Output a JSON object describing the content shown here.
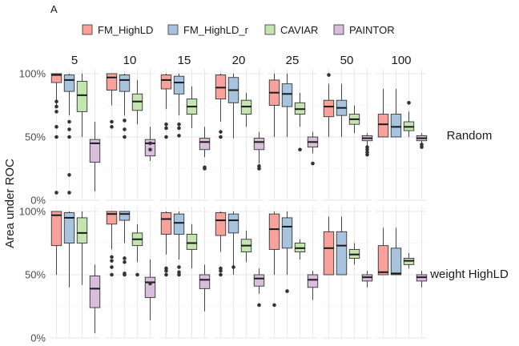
{
  "chart_data": {
    "type": "boxplot",
    "panel_label": "A",
    "ylabel": "Area under ROC",
    "ylim": [
      0,
      1
    ],
    "yticks": [
      0,
      0.5,
      1
    ],
    "ytick_labels": [
      "0%",
      "50%",
      "100%"
    ],
    "legend": {
      "position": "top",
      "entries": [
        {
          "name": "FM_HighLD",
          "color": "#F8A29B"
        },
        {
          "name": "FM_HighLD_r",
          "color": "#A7C3DE"
        },
        {
          "name": "CAVIAR",
          "color": "#C4E4B1"
        },
        {
          "name": "PAINTOR",
          "color": "#D8BEDB"
        }
      ]
    },
    "columns": [
      "5",
      "10",
      "15",
      "20",
      "25",
      "50",
      "100"
    ],
    "rows": [
      "Random",
      "weight HighLD"
    ],
    "grid": true,
    "panels": [
      {
        "row": 0,
        "col": 0,
        "boxes": [
          {
            "series": 0,
            "min": 0.73,
            "q1": 0.93,
            "median": 0.99,
            "q3": 1.0,
            "max": 1.0,
            "outliers": [
              0.78,
              0.74,
              0.7,
              0.58,
              0.5,
              0.06
            ]
          },
          {
            "series": 1,
            "min": 0.67,
            "q1": 0.86,
            "median": 0.95,
            "q3": 0.99,
            "max": 1.0,
            "outliers": [
              0.62,
              0.56,
              0.5,
              0.2,
              0.06
            ]
          },
          {
            "series": 2,
            "min": 0.5,
            "q1": 0.7,
            "median": 0.83,
            "q3": 0.94,
            "max": 1.0,
            "outliers": []
          },
          {
            "series": 3,
            "min": 0.07,
            "q1": 0.3,
            "median": 0.45,
            "q3": 0.48,
            "max": 0.62,
            "outliers": []
          }
        ]
      },
      {
        "row": 0,
        "col": 1,
        "boxes": [
          {
            "series": 0,
            "min": 0.75,
            "q1": 0.87,
            "median": 0.97,
            "q3": 1.0,
            "max": 1.0,
            "outliers": [
              0.62,
              0.58
            ]
          },
          {
            "series": 1,
            "min": 0.67,
            "q1": 0.86,
            "median": 0.95,
            "q3": 0.99,
            "max": 1.0,
            "outliers": [
              0.63,
              0.56,
              0.5
            ]
          },
          {
            "series": 2,
            "min": 0.6,
            "q1": 0.71,
            "median": 0.78,
            "q3": 0.84,
            "max": 0.95,
            "outliers": []
          },
          {
            "series": 3,
            "min": 0.31,
            "q1": 0.35,
            "median": 0.45,
            "q3": 0.48,
            "max": 0.58,
            "outliers": [
              0.45,
              0.4
            ]
          }
        ]
      },
      {
        "row": 0,
        "col": 2,
        "boxes": [
          {
            "series": 0,
            "min": 0.72,
            "q1": 0.88,
            "median": 0.95,
            "q3": 0.99,
            "max": 1.0,
            "outliers": [
              0.6,
              0.57,
              0.5
            ]
          },
          {
            "series": 1,
            "min": 0.67,
            "q1": 0.84,
            "median": 0.93,
            "q3": 0.98,
            "max": 1.0,
            "outliers": [
              0.6,
              0.57,
              0.51
            ]
          },
          {
            "series": 2,
            "min": 0.57,
            "q1": 0.68,
            "median": 0.74,
            "q3": 0.8,
            "max": 0.9,
            "outliers": []
          },
          {
            "series": 3,
            "min": 0.34,
            "q1": 0.4,
            "median": 0.46,
            "q3": 0.49,
            "max": 0.58,
            "outliers": [
              0.26,
              0.25
            ]
          }
        ]
      },
      {
        "row": 0,
        "col": 3,
        "boxes": [
          {
            "series": 0,
            "min": 0.62,
            "q1": 0.8,
            "median": 0.89,
            "q3": 0.99,
            "max": 1.0,
            "outliers": [
              0.54,
              0.5
            ]
          },
          {
            "series": 1,
            "min": 0.49,
            "q1": 0.77,
            "median": 0.87,
            "q3": 0.97,
            "max": 1.0,
            "outliers": []
          },
          {
            "series": 2,
            "min": 0.58,
            "q1": 0.68,
            "median": 0.74,
            "q3": 0.79,
            "max": 0.85,
            "outliers": []
          },
          {
            "series": 3,
            "min": 0.29,
            "q1": 0.4,
            "median": 0.46,
            "q3": 0.49,
            "max": 0.54,
            "outliers": [
              0.27,
              0.25
            ]
          }
        ]
      },
      {
        "row": 0,
        "col": 4,
        "boxes": [
          {
            "series": 0,
            "min": 0.5,
            "q1": 0.75,
            "median": 0.85,
            "q3": 0.95,
            "max": 1.0,
            "outliers": []
          },
          {
            "series": 1,
            "min": 0.5,
            "q1": 0.74,
            "median": 0.84,
            "q3": 0.92,
            "max": 1.0,
            "outliers": []
          },
          {
            "series": 2,
            "min": 0.58,
            "q1": 0.68,
            "median": 0.72,
            "q3": 0.77,
            "max": 0.85,
            "outliers": [
              0.4
            ]
          },
          {
            "series": 3,
            "min": 0.37,
            "q1": 0.42,
            "median": 0.46,
            "q3": 0.5,
            "max": 0.54,
            "outliers": [
              0.29
            ]
          }
        ]
      },
      {
        "row": 0,
        "col": 5,
        "boxes": [
          {
            "series": 0,
            "min": 0.5,
            "q1": 0.66,
            "median": 0.74,
            "q3": 0.79,
            "max": 0.92,
            "outliers": [
              0.99
            ]
          },
          {
            "series": 1,
            "min": 0.5,
            "q1": 0.67,
            "median": 0.73,
            "q3": 0.79,
            "max": 0.92,
            "outliers": []
          },
          {
            "series": 2,
            "min": 0.53,
            "q1": 0.6,
            "median": 0.64,
            "q3": 0.68,
            "max": 0.75,
            "outliers": []
          },
          {
            "series": 3,
            "min": 0.43,
            "q1": 0.47,
            "median": 0.49,
            "q3": 0.51,
            "max": 0.53,
            "outliers": [
              0.42,
              0.4,
              0.38,
              0.36
            ]
          }
        ]
      },
      {
        "row": 0,
        "col": 6,
        "boxes": [
          {
            "series": 0,
            "min": 0.5,
            "q1": 0.5,
            "median": 0.6,
            "q3": 0.68,
            "max": 0.88,
            "outliers": []
          },
          {
            "series": 1,
            "min": 0.5,
            "q1": 0.5,
            "median": 0.58,
            "q3": 0.68,
            "max": 0.88,
            "outliers": []
          },
          {
            "series": 2,
            "min": 0.5,
            "q1": 0.55,
            "median": 0.58,
            "q3": 0.62,
            "max": 0.7,
            "outliers": [
              0.77
            ]
          },
          {
            "series": 3,
            "min": 0.45,
            "q1": 0.47,
            "median": 0.49,
            "q3": 0.51,
            "max": 0.53,
            "outliers": [
              0.44,
              0.42
            ]
          }
        ]
      },
      {
        "row": 1,
        "col": 0,
        "boxes": [
          {
            "series": 0,
            "min": 0.5,
            "q1": 0.73,
            "median": 0.97,
            "q3": 1.0,
            "max": 1.0,
            "outliers": []
          },
          {
            "series": 1,
            "min": 0.4,
            "q1": 0.75,
            "median": 0.95,
            "q3": 0.99,
            "max": 1.0,
            "outliers": []
          },
          {
            "series": 2,
            "min": 0.42,
            "q1": 0.75,
            "median": 0.83,
            "q3": 0.95,
            "max": 1.0,
            "outliers": []
          },
          {
            "series": 3,
            "min": 0.04,
            "q1": 0.24,
            "median": 0.39,
            "q3": 0.49,
            "max": 0.58,
            "outliers": []
          }
        ]
      },
      {
        "row": 1,
        "col": 1,
        "boxes": [
          {
            "series": 0,
            "min": 0.7,
            "q1": 0.9,
            "median": 0.98,
            "q3": 1.0,
            "max": 1.0,
            "outliers": [
              0.64,
              0.61,
              0.56,
              0.5
            ]
          },
          {
            "series": 1,
            "min": 0.75,
            "q1": 0.93,
            "median": 0.98,
            "q3": 1.0,
            "max": 1.0,
            "outliers": [
              0.63,
              0.6,
              0.51,
              0.5
            ]
          },
          {
            "series": 2,
            "min": 0.6,
            "q1": 0.73,
            "median": 0.78,
            "q3": 0.83,
            "max": 0.9,
            "outliers": [
              0.5
            ]
          },
          {
            "series": 3,
            "min": 0.14,
            "q1": 0.32,
            "median": 0.44,
            "q3": 0.48,
            "max": 0.62,
            "outliers": [
              0.43
            ]
          }
        ]
      },
      {
        "row": 1,
        "col": 2,
        "boxes": [
          {
            "series": 0,
            "min": 0.66,
            "q1": 0.82,
            "median": 0.94,
            "q3": 0.99,
            "max": 1.0,
            "outliers": [
              0.55,
              0.53,
              0.5
            ]
          },
          {
            "series": 1,
            "min": 0.62,
            "q1": 0.82,
            "median": 0.91,
            "q3": 0.98,
            "max": 1.0,
            "outliers": [
              0.56,
              0.52,
              0.5
            ]
          },
          {
            "series": 2,
            "min": 0.55,
            "q1": 0.7,
            "median": 0.75,
            "q3": 0.82,
            "max": 0.9,
            "outliers": []
          },
          {
            "series": 3,
            "min": 0.21,
            "q1": 0.39,
            "median": 0.46,
            "q3": 0.5,
            "max": 0.58,
            "outliers": []
          }
        ]
      },
      {
        "row": 1,
        "col": 3,
        "boxes": [
          {
            "series": 0,
            "min": 0.68,
            "q1": 0.81,
            "median": 0.93,
            "q3": 0.99,
            "max": 1.0,
            "outliers": [
              0.55,
              0.53,
              0.5
            ]
          },
          {
            "series": 1,
            "min": 0.5,
            "q1": 0.83,
            "median": 0.93,
            "q3": 0.98,
            "max": 1.0,
            "outliers": [
              0.56
            ]
          },
          {
            "series": 2,
            "min": 0.6,
            "q1": 0.68,
            "median": 0.73,
            "q3": 0.78,
            "max": 0.85,
            "outliers": []
          },
          {
            "series": 3,
            "min": 0.35,
            "q1": 0.41,
            "median": 0.47,
            "q3": 0.5,
            "max": 0.55,
            "outliers": [
              0.26
            ]
          }
        ]
      },
      {
        "row": 1,
        "col": 4,
        "boxes": [
          {
            "series": 0,
            "min": 0.5,
            "q1": 0.7,
            "median": 0.86,
            "q3": 0.98,
            "max": 1.0,
            "outliers": [
              0.26
            ]
          },
          {
            "series": 1,
            "min": 0.5,
            "q1": 0.71,
            "median": 0.88,
            "q3": 0.95,
            "max": 1.0,
            "outliers": [
              0.37
            ]
          },
          {
            "series": 2,
            "min": 0.62,
            "q1": 0.68,
            "median": 0.71,
            "q3": 0.75,
            "max": 0.78,
            "outliers": []
          },
          {
            "series": 3,
            "min": 0.3,
            "q1": 0.4,
            "median": 0.46,
            "q3": 0.5,
            "max": 0.53,
            "outliers": []
          }
        ]
      },
      {
        "row": 1,
        "col": 5,
        "boxes": [
          {
            "series": 0,
            "min": 0.5,
            "q1": 0.5,
            "median": 0.71,
            "q3": 0.84,
            "max": 0.96,
            "outliers": []
          },
          {
            "series": 1,
            "min": 0.5,
            "q1": 0.5,
            "median": 0.73,
            "q3": 0.84,
            "max": 0.96,
            "outliers": []
          },
          {
            "series": 2,
            "min": 0.58,
            "q1": 0.63,
            "median": 0.66,
            "q3": 0.7,
            "max": 0.75,
            "outliers": []
          },
          {
            "series": 3,
            "min": 0.4,
            "q1": 0.45,
            "median": 0.48,
            "q3": 0.5,
            "max": 0.53,
            "outliers": []
          }
        ]
      },
      {
        "row": 1,
        "col": 6,
        "boxes": [
          {
            "series": 0,
            "min": 0.5,
            "q1": 0.5,
            "median": 0.52,
            "q3": 0.73,
            "max": 0.87,
            "outliers": []
          },
          {
            "series": 1,
            "min": 0.5,
            "q1": 0.5,
            "median": 0.51,
            "q3": 0.71,
            "max": 0.87,
            "outliers": []
          },
          {
            "series": 2,
            "min": 0.55,
            "q1": 0.58,
            "median": 0.61,
            "q3": 0.63,
            "max": 0.67,
            "outliers": []
          },
          {
            "series": 3,
            "min": 0.4,
            "q1": 0.45,
            "median": 0.48,
            "q3": 0.5,
            "max": 0.53,
            "outliers": []
          }
        ]
      }
    ]
  }
}
